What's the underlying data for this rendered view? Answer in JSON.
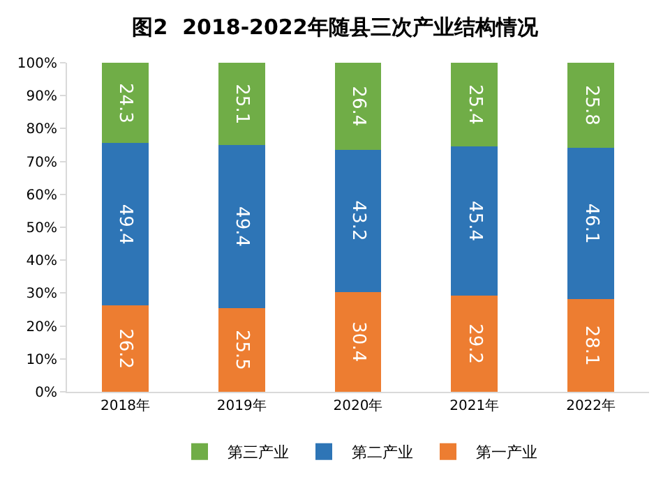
{
  "chart_data": {
    "type": "bar",
    "title": "图2  2018-2022年随县三次产业结构情况",
    "categories": [
      "2018年",
      "2019年",
      "2020年",
      "2021年",
      "2022年"
    ],
    "stacked": true,
    "data_labels": true,
    "legend": "bottom",
    "grid": false,
    "ylim": [
      0,
      100
    ],
    "yticks": [
      {
        "value": 0,
        "label": "0%"
      },
      {
        "value": 10,
        "label": "10%"
      },
      {
        "value": 20,
        "label": "20%"
      },
      {
        "value": 30,
        "label": "30%"
      },
      {
        "value": 40,
        "label": "40%"
      },
      {
        "value": 50,
        "label": "50%"
      },
      {
        "value": 60,
        "label": "60%"
      },
      {
        "value": 70,
        "label": "70%"
      },
      {
        "value": 80,
        "label": "80%"
      },
      {
        "value": 90,
        "label": "90%"
      },
      {
        "value": 100,
        "label": "100%"
      }
    ],
    "series": [
      {
        "name": "第一产业",
        "color": "#ed7d31",
        "values": [
          26.2,
          25.5,
          30.4,
          29.2,
          28.1
        ]
      },
      {
        "name": "第二产业",
        "color": "#2e75b6",
        "values": [
          49.4,
          49.4,
          43.2,
          45.4,
          46.1
        ]
      },
      {
        "name": "第三产业",
        "color": "#70ad47",
        "values": [
          24.3,
          25.1,
          26.4,
          25.4,
          25.8
        ]
      }
    ]
  }
}
